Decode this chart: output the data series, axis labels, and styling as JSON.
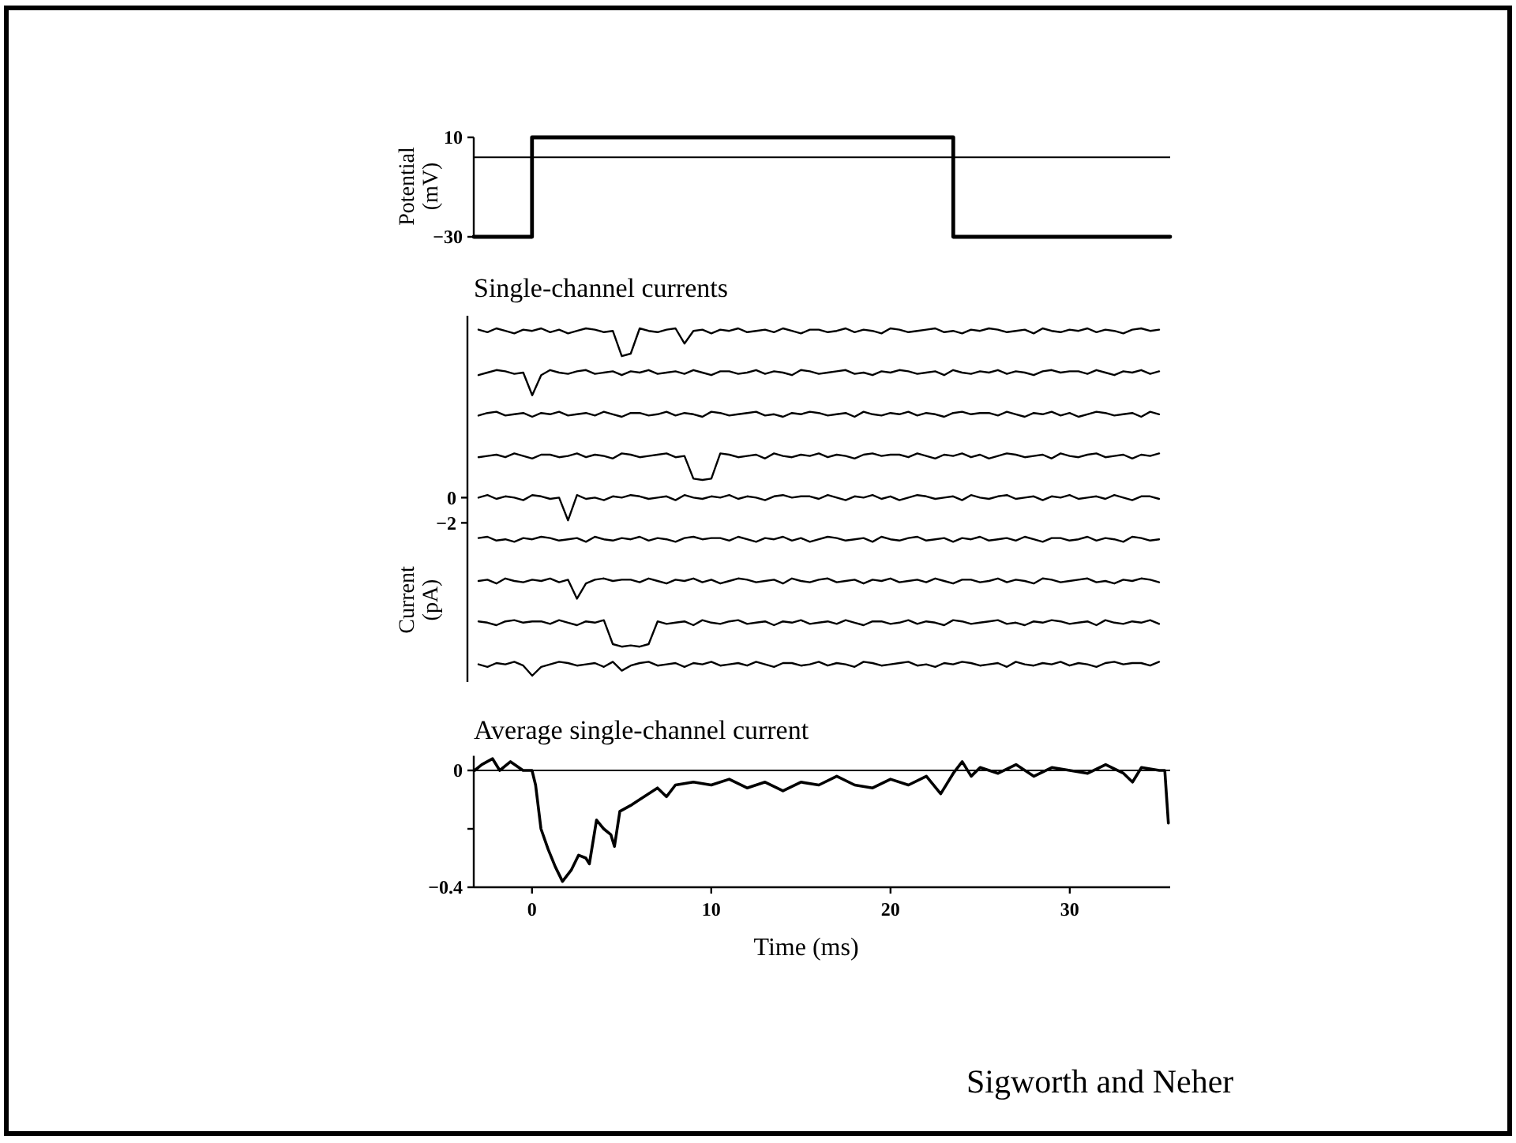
{
  "chart_data": [
    {
      "type": "step",
      "ylabel": "Potential (mV)",
      "xlim": [
        -3.25,
        35.6
      ],
      "ylim": [
        -30,
        10
      ],
      "yticks": [
        -30,
        10
      ],
      "tick_labels": "y",
      "ref_lines": [
        {
          "axis": "y",
          "value": 2,
          "color": "#000000"
        }
      ],
      "series": [
        {
          "color": "#000000",
          "x": [
            -3.25,
            0,
            23.5,
            35.6
          ],
          "values": [
            -30,
            10,
            -30,
            -30
          ]
        }
      ]
    },
    {
      "type": "line",
      "title": "Single-channel currents",
      "ylabel": "Current (pA)",
      "ylim": [
        -14.6,
        14.4
      ],
      "yticks": [
        0,
        -2
      ],
      "tick_labels": "y",
      "categories": [
        null,
        null,
        null,
        null,
        null,
        null,
        null,
        null,
        null,
        null,
        null,
        null,
        null,
        null,
        null,
        null,
        null,
        null,
        null,
        null,
        null,
        null,
        null,
        null,
        null,
        null,
        null,
        null,
        null,
        null,
        null,
        null,
        null,
        null,
        null,
        null,
        null,
        null,
        null,
        null,
        null,
        null,
        null,
        null,
        null,
        null,
        null,
        null,
        null,
        null,
        null,
        null,
        null,
        null,
        null,
        null,
        null,
        null,
        null,
        null,
        null,
        null,
        null,
        null,
        null,
        null,
        null,
        null,
        null,
        null,
        null,
        null,
        null,
        null,
        null,
        null,
        null
      ],
      "series": [
        {
          "color": "#000000",
          "values": [
            13.3,
            13.1,
            13.4,
            13.2,
            13.0,
            13.3,
            13.2,
            13.4,
            13.1,
            13.3,
            13.0,
            13.2,
            13.4,
            13.3,
            13.1,
            13.2,
            11.2,
            11.4,
            13.4,
            13.2,
            13.1,
            13.3,
            13.4,
            12.2,
            13.2,
            13.3,
            13.0,
            13.3,
            13.2,
            13.4,
            13.1,
            13.2,
            13.3,
            13.1,
            13.4,
            13.2,
            13.0,
            13.3,
            13.3,
            13.1,
            13.2,
            13.4,
            13.1,
            13.3,
            13.2,
            13.0,
            13.4,
            13.3,
            13.1,
            13.2,
            13.3,
            13.4,
            13.1,
            13.2,
            13.0,
            13.3,
            13.2,
            13.4,
            13.3,
            13.1,
            13.2,
            13.3,
            13.0,
            13.4,
            13.2,
            13.1,
            13.3,
            13.2,
            13.4,
            13.1,
            13.3,
            13.2,
            13.0,
            13.3,
            13.4,
            13.2,
            13.3
          ]
        },
        {
          "color": "#000000",
          "values": [
            9.7,
            9.9,
            10.1,
            10.0,
            9.8,
            9.9,
            8.1,
            9.7,
            10.1,
            9.9,
            9.8,
            10.0,
            10.1,
            9.8,
            9.9,
            10.0,
            9.7,
            10.0,
            9.9,
            10.1,
            9.8,
            9.9,
            10.0,
            9.8,
            10.1,
            9.9,
            9.7,
            10.0,
            10.0,
            9.8,
            9.9,
            10.1,
            9.8,
            10.0,
            9.9,
            9.7,
            10.1,
            10.0,
            9.8,
            9.9,
            10.0,
            10.1,
            9.8,
            9.9,
            9.7,
            10.0,
            9.9,
            10.1,
            10.0,
            9.8,
            9.9,
            10.0,
            9.7,
            10.1,
            9.9,
            9.8,
            10.0,
            9.9,
            10.1,
            9.8,
            10.0,
            9.9,
            9.7,
            10.0,
            10.1,
            9.9,
            10.0,
            10.0,
            9.8,
            10.1,
            9.9,
            9.7,
            10.0,
            9.9,
            10.1,
            9.8,
            10.0
          ]
        },
        {
          "color": "#000000",
          "values": [
            6.5,
            6.7,
            6.8,
            6.5,
            6.6,
            6.7,
            6.4,
            6.7,
            6.6,
            6.8,
            6.5,
            6.6,
            6.7,
            6.5,
            6.8,
            6.6,
            6.4,
            6.7,
            6.7,
            6.5,
            6.6,
            6.8,
            6.5,
            6.7,
            6.6,
            6.4,
            6.8,
            6.7,
            6.5,
            6.6,
            6.7,
            6.8,
            6.5,
            6.6,
            6.4,
            6.7,
            6.6,
            6.8,
            6.7,
            6.5,
            6.6,
            6.7,
            6.4,
            6.8,
            6.6,
            6.5,
            6.7,
            6.6,
            6.8,
            6.5,
            6.7,
            6.6,
            6.4,
            6.7,
            6.8,
            6.6,
            6.7,
            6.7,
            6.5,
            6.8,
            6.6,
            6.4,
            6.7,
            6.6,
            6.8,
            6.5,
            6.7,
            6.4,
            6.6,
            6.8,
            6.7,
            6.5,
            6.6,
            6.7,
            6.4,
            6.8,
            6.6
          ]
        },
        {
          "color": "#000000",
          "values": [
            3.2,
            3.3,
            3.4,
            3.2,
            3.5,
            3.3,
            3.1,
            3.4,
            3.4,
            3.2,
            3.3,
            3.5,
            3.2,
            3.4,
            3.3,
            3.1,
            3.5,
            3.4,
            3.2,
            3.3,
            3.4,
            3.5,
            3.2,
            3.3,
            1.5,
            1.4,
            1.5,
            3.5,
            3.4,
            3.2,
            3.3,
            3.4,
            3.1,
            3.5,
            3.3,
            3.2,
            3.4,
            3.3,
            3.5,
            3.2,
            3.4,
            3.3,
            3.1,
            3.4,
            3.5,
            3.3,
            3.4,
            3.4,
            3.2,
            3.5,
            3.3,
            3.1,
            3.4,
            3.3,
            3.5,
            3.2,
            3.4,
            3.1,
            3.3,
            3.5,
            3.4,
            3.2,
            3.3,
            3.4,
            3.1,
            3.5,
            3.3,
            3.2,
            3.4,
            3.5,
            3.2,
            3.3,
            3.4,
            3.1,
            3.4,
            3.3,
            3.5
          ]
        },
        {
          "color": "#000000",
          "values": [
            0,
            0.2,
            -0.1,
            0.1,
            0,
            -0.2,
            0.2,
            0.1,
            -0.1,
            0,
            -1.8,
            0.2,
            -0.1,
            0,
            -0.2,
            0.1,
            0,
            0.2,
            0.1,
            -0.1,
            0,
            0.1,
            -0.2,
            0.2,
            0,
            -0.1,
            0.1,
            0,
            0.2,
            -0.1,
            0.1,
            0,
            -0.2,
            0.1,
            0.2,
            0,
            0.1,
            0.1,
            -0.1,
            0.2,
            0,
            -0.2,
            0.1,
            0,
            0.2,
            -0.1,
            0.1,
            -0.2,
            0,
            0.2,
            0.1,
            -0.1,
            0,
            0.1,
            -0.2,
            0.2,
            0,
            -0.1,
            0.1,
            0.2,
            -0.1,
            0,
            0.1,
            -0.2,
            0.1,
            0,
            0.2,
            -0.1,
            0,
            0.1,
            -0.1,
            0.2,
            0,
            -0.2,
            0.1,
            0.1,
            -0.1
          ]
        },
        {
          "color": "#000000",
          "values": [
            -3.2,
            -3.1,
            -3.4,
            -3.3,
            -3.5,
            -3.2,
            -3.3,
            -3.1,
            -3.2,
            -3.4,
            -3.3,
            -3.2,
            -3.5,
            -3.1,
            -3.3,
            -3.4,
            -3.2,
            -3.3,
            -3.1,
            -3.4,
            -3.2,
            -3.3,
            -3.5,
            -3.2,
            -3.1,
            -3.3,
            -3.2,
            -3.2,
            -3.4,
            -3.1,
            -3.3,
            -3.5,
            -3.2,
            -3.3,
            -3.1,
            -3.4,
            -3.2,
            -3.5,
            -3.3,
            -3.1,
            -3.2,
            -3.4,
            -3.3,
            -3.2,
            -3.5,
            -3.1,
            -3.3,
            -3.4,
            -3.2,
            -3.1,
            -3.4,
            -3.3,
            -3.2,
            -3.5,
            -3.2,
            -3.3,
            -3.1,
            -3.4,
            -3.3,
            -3.2,
            -3.4,
            -3.1,
            -3.3,
            -3.5,
            -3.2,
            -3.2,
            -3.4,
            -3.3,
            -3.1,
            -3.4,
            -3.2,
            -3.3,
            -3.5,
            -3.1,
            -3.2,
            -3.4,
            -3.3
          ]
        },
        {
          "color": "#000000",
          "values": [
            -6.6,
            -6.5,
            -6.8,
            -6.4,
            -6.6,
            -6.7,
            -6.5,
            -6.6,
            -6.4,
            -6.7,
            -6.5,
            -8.0,
            -6.8,
            -6.5,
            -6.4,
            -6.6,
            -6.5,
            -6.5,
            -6.7,
            -6.4,
            -6.6,
            -6.8,
            -6.5,
            -6.6,
            -6.4,
            -6.7,
            -6.5,
            -6.8,
            -6.6,
            -6.4,
            -6.5,
            -6.7,
            -6.6,
            -6.5,
            -6.8,
            -6.4,
            -6.6,
            -6.7,
            -6.5,
            -6.4,
            -6.7,
            -6.6,
            -6.5,
            -6.8,
            -6.5,
            -6.6,
            -6.4,
            -6.7,
            -6.6,
            -6.5,
            -6.7,
            -6.4,
            -6.6,
            -6.8,
            -6.5,
            -6.5,
            -6.7,
            -6.6,
            -6.4,
            -6.7,
            -6.5,
            -6.6,
            -6.8,
            -6.4,
            -6.5,
            -6.7,
            -6.6,
            -6.5,
            -6.4,
            -6.7,
            -6.6,
            -6.8,
            -6.5,
            -6.6,
            -6.4,
            -6.5,
            -6.7
          ]
        },
        {
          "color": "#000000",
          "values": [
            -9.8,
            -9.9,
            -10.1,
            -9.8,
            -9.7,
            -9.9,
            -9.8,
            -9.8,
            -10.0,
            -9.7,
            -9.9,
            -10.1,
            -9.8,
            -9.9,
            -9.7,
            -11.6,
            -11.8,
            -11.7,
            -11.8,
            -11.6,
            -9.8,
            -10.0,
            -9.9,
            -9.8,
            -10.1,
            -9.7,
            -9.9,
            -10.0,
            -9.8,
            -9.7,
            -10.0,
            -9.9,
            -9.8,
            -10.1,
            -9.8,
            -9.9,
            -9.7,
            -10.0,
            -9.9,
            -9.8,
            -10.0,
            -9.7,
            -9.9,
            -10.1,
            -9.8,
            -9.8,
            -10.0,
            -9.9,
            -9.7,
            -10.0,
            -9.8,
            -9.9,
            -10.1,
            -9.7,
            -9.8,
            -10.0,
            -9.9,
            -9.8,
            -9.7,
            -10.0,
            -9.9,
            -10.1,
            -9.8,
            -9.9,
            -9.7,
            -9.8,
            -10.0,
            -9.9,
            -9.8,
            -10.1,
            -9.7,
            -9.9,
            -10.0,
            -9.8,
            -9.9,
            -9.7,
            -10.0
          ]
        },
        {
          "color": "#000000",
          "values": [
            -13.2,
            -13.4,
            -13.1,
            -13.2,
            -13.0,
            -13.3,
            -14.1,
            -13.4,
            -13.2,
            -13.0,
            -13.1,
            -13.3,
            -13.2,
            -13.1,
            -13.4,
            -13.0,
            -13.7,
            -13.3,
            -13.1,
            -13.0,
            -13.3,
            -13.2,
            -13.1,
            -13.4,
            -13.1,
            -13.2,
            -13.0,
            -13.3,
            -13.2,
            -13.1,
            -13.3,
            -13.0,
            -13.2,
            -13.4,
            -13.1,
            -13.1,
            -13.3,
            -13.2,
            -13.0,
            -13.3,
            -13.1,
            -13.2,
            -13.4,
            -13.0,
            -13.1,
            -13.3,
            -13.2,
            -13.1,
            -13.0,
            -13.3,
            -13.2,
            -13.4,
            -13.1,
            -13.2,
            -13.0,
            -13.1,
            -13.3,
            -13.2,
            -13.1,
            -13.4,
            -13.0,
            -13.2,
            -13.3,
            -13.1,
            -13.2,
            -13.0,
            -13.3,
            -13.1,
            -13.2,
            -13.4,
            -13.1,
            -13.0,
            -13.2,
            -13.1,
            -13.1,
            -13.3,
            -13.0
          ]
        }
      ]
    },
    {
      "type": "line",
      "title": "Average single-channel current",
      "xlabel": "Time (ms)",
      "xlim": [
        -3.25,
        35.6
      ],
      "ylim": [
        -0.4,
        0.05
      ],
      "xticks": [
        0,
        10,
        20,
        30
      ],
      "yticks": [
        {
          "value": -0.4,
          "label": "−0.4"
        },
        {
          "value": -0.2,
          "label": null
        },
        0
      ],
      "ref_lines": [
        {
          "axis": "y",
          "value": 0,
          "color": "#000000"
        }
      ],
      "annotations": [
        "Sigworth and Neher"
      ],
      "series": [
        {
          "color": "#000000",
          "x": [
            -3.2,
            -2.8,
            -2.2,
            -1.8,
            -1.2,
            -0.5,
            0,
            0.2,
            0.5,
            0.9,
            1.3,
            1.7,
            2.2,
            2.6,
            3.0,
            3.2,
            3.6,
            4.0,
            4.4,
            4.6,
            4.9,
            5.5,
            6,
            7,
            7.5,
            8,
            9,
            10,
            11,
            12,
            13,
            14,
            15,
            16,
            17,
            18,
            19,
            20,
            21,
            22,
            22.8,
            23.5,
            24,
            24.5,
            25,
            26,
            27,
            28,
            29,
            30,
            31,
            32,
            33,
            33.5,
            34,
            35,
            35.3,
            35.5
          ],
          "values": [
            0.0,
            0.02,
            0.04,
            0.0,
            0.03,
            0.0,
            0.0,
            -0.05,
            -0.2,
            -0.27,
            -0.33,
            -0.38,
            -0.34,
            -0.29,
            -0.3,
            -0.32,
            -0.17,
            -0.2,
            -0.22,
            -0.26,
            -0.14,
            -0.12,
            -0.1,
            -0.06,
            -0.09,
            -0.05,
            -0.04,
            -0.05,
            -0.03,
            -0.06,
            -0.04,
            -0.07,
            -0.04,
            -0.05,
            -0.02,
            -0.05,
            -0.06,
            -0.03,
            -0.05,
            -0.02,
            -0.08,
            -0.01,
            0.03,
            -0.02,
            0.01,
            -0.01,
            0.02,
            -0.02,
            0.01,
            0.0,
            -0.01,
            0.02,
            -0.01,
            -0.04,
            0.01,
            0.0,
            0.0,
            -0.18
          ]
        }
      ]
    }
  ]
}
